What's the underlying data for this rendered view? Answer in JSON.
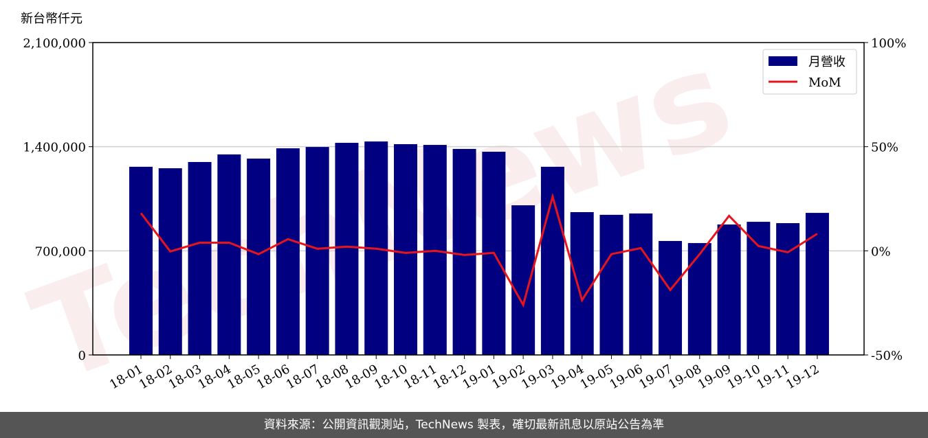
{
  "chart_data": {
    "type": "bar_line",
    "y_unit_label": "新台幣仟元",
    "watermark": "TechNews",
    "footer": "資料來源：公開資訊觀測站，TechNews 製表，確切最新訊息以原站公告為準",
    "categories": [
      "18-01",
      "18-02",
      "18-03",
      "18-04",
      "18-05",
      "18-06",
      "18-07",
      "18-08",
      "18-09",
      "18-10",
      "18-11",
      "18-12",
      "19-01",
      "19-02",
      "19-03",
      "19-04",
      "19-05",
      "19-06",
      "19-07",
      "19-08",
      "19-09",
      "19-10",
      "19-11",
      "19-12"
    ],
    "series": [
      {
        "name": "月營收",
        "type": "bar",
        "color": "#000080",
        "values": [
          1265000,
          1255000,
          1297000,
          1348000,
          1320000,
          1389000,
          1398000,
          1426000,
          1435000,
          1417000,
          1412000,
          1385000,
          1366000,
          1006000,
          1265000,
          960000,
          942000,
          951000,
          766000,
          752000,
          877000,
          895000,
          886000,
          955000
        ]
      },
      {
        "name": "MoM",
        "type": "line",
        "axis": "y2",
        "color": "#e8141c",
        "values": [
          18.1,
          -0.3,
          3.9,
          3.9,
          -1.6,
          5.6,
          1.0,
          2.0,
          1.0,
          -1.0,
          0,
          -2.0,
          -1.0,
          -26.0,
          26.0,
          -23.7,
          -1.6,
          1.3,
          -18.8,
          -1.6,
          16.8,
          2.3,
          -0.7,
          8.2
        ]
      }
    ],
    "ylim": [
      0,
      2100000
    ],
    "yticks": [
      0,
      {
        "value": 700000,
        "label": "700,000"
      },
      {
        "value": 1400000,
        "label": "1,400,000"
      },
      {
        "value": 2100000,
        "label": "2,100,000"
      }
    ],
    "y2lim": [
      -50,
      100
    ],
    "y2ticks": [
      {
        "value": -50,
        "label": "-50%"
      },
      {
        "value": 0,
        "label": "0%"
      },
      {
        "value": 50,
        "label": "50%"
      },
      {
        "value": 100,
        "label": "100%"
      }
    ],
    "grid": true,
    "legend": "upper right"
  }
}
